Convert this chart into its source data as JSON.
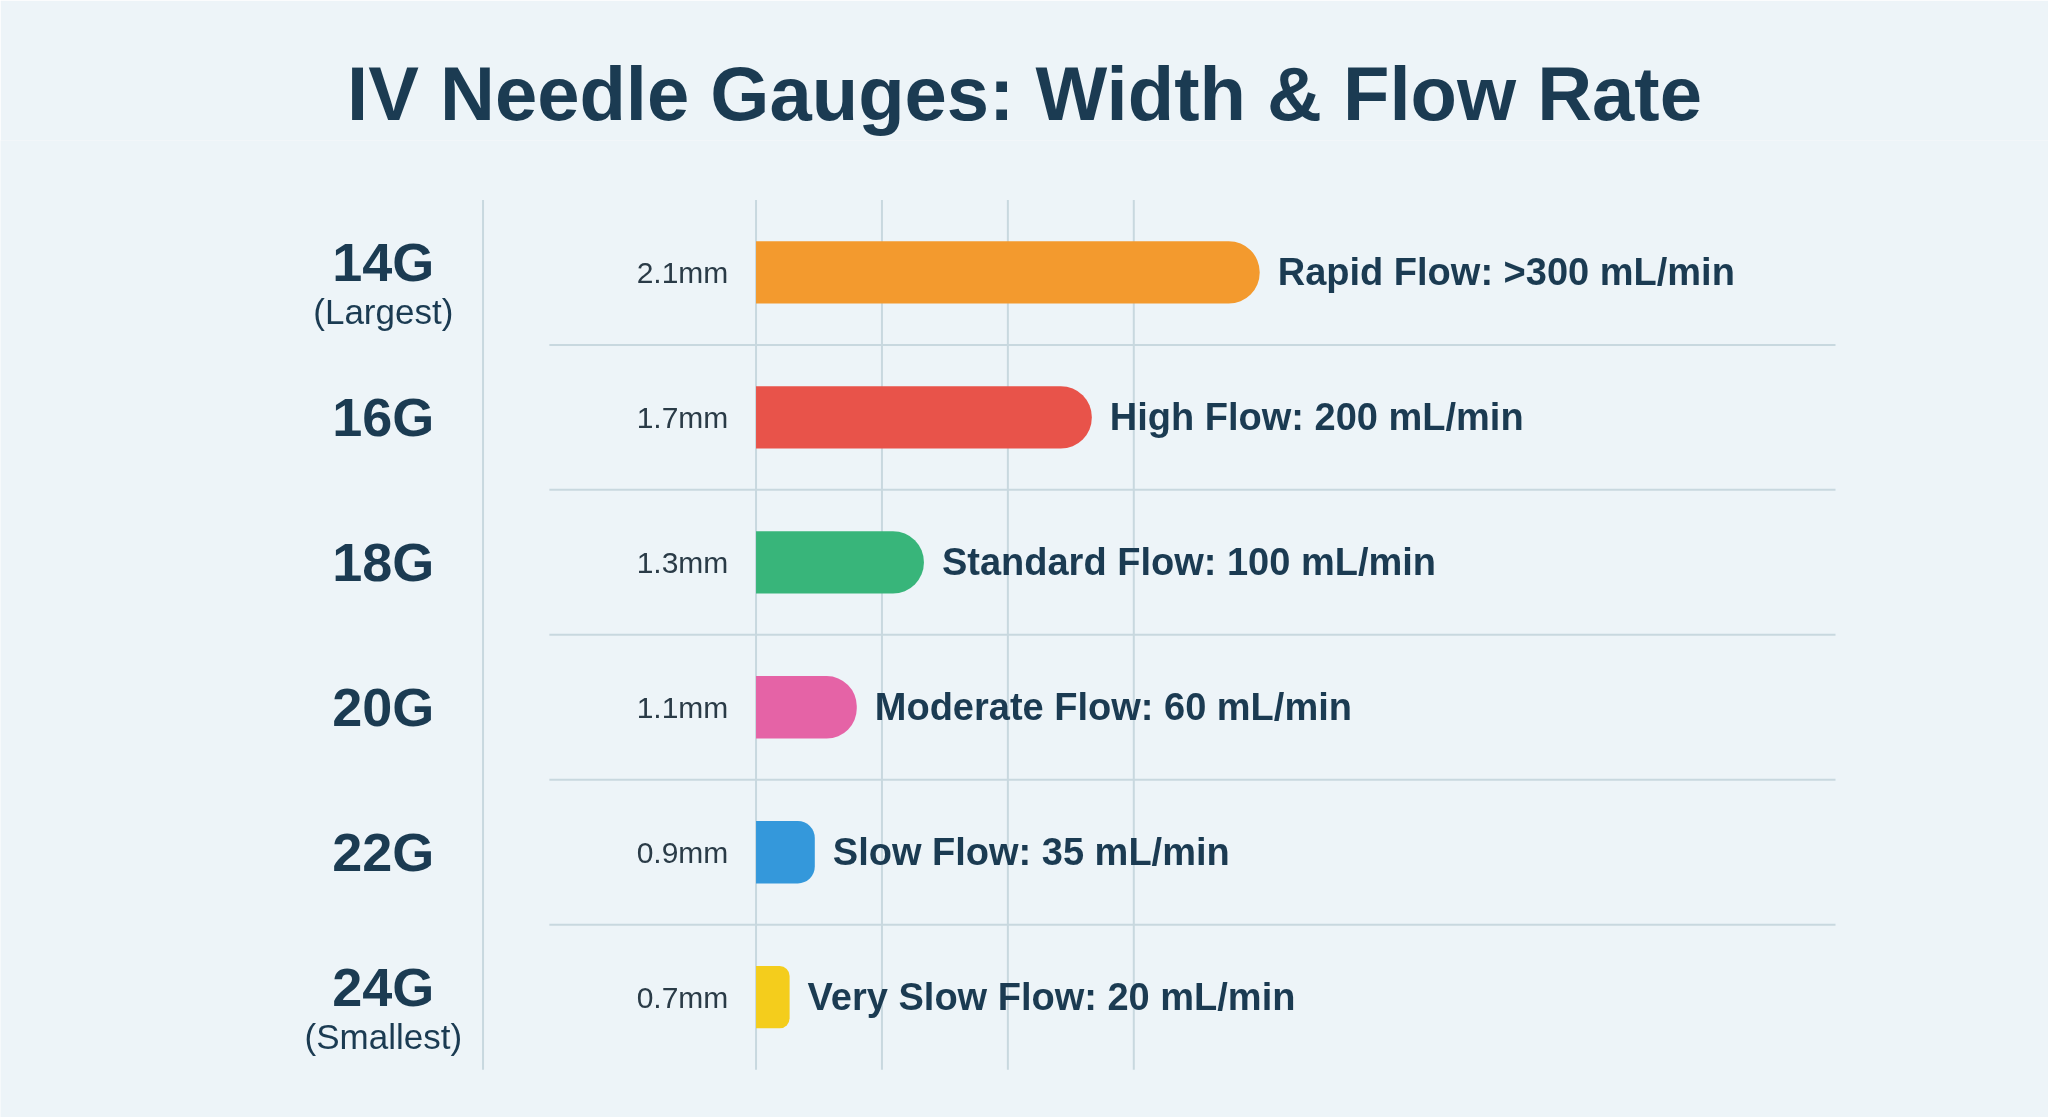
{
  "chart_data": {
    "type": "bar",
    "title": "IV Needle Gauges: Width & Flow Rate",
    "orientation": "horizontal",
    "categories": [
      "14G\n(Largest)",
      "16G",
      "18G",
      "20G",
      "22G",
      "24G\n(Smallest)"
    ],
    "y2_categories": [
      "2.1mm",
      "1.7mm",
      "1.3mm",
      "1.1mm",
      "0.9mm",
      "0.7mm"
    ],
    "values": [
      300,
      200,
      100,
      60,
      35,
      20
    ],
    "colors": [
      "#f39a2e",
      "#e8534a",
      "#38b57a",
      "#e563a6",
      "#3498db",
      "#f4cd1c"
    ],
    "value_labels": [
      "Rapid Flow: >300 mL/min",
      "High Flow: 200 mL/min",
      "Standard Flow: 100 mL/min",
      "Moderate Flow: 60 mL/min",
      "Slow Flow: 35 mL/min",
      "Very Slow Flow: 20 mL/min"
    ],
    "grid": true
  }
}
